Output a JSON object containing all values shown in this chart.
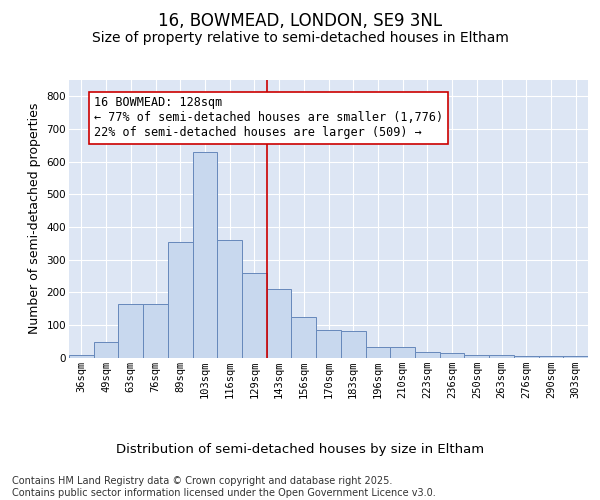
{
  "title": "16, BOWMEAD, LONDON, SE9 3NL",
  "subtitle": "Size of property relative to semi-detached houses in Eltham",
  "xlabel": "Distribution of semi-detached houses by size in Eltham",
  "ylabel": "Number of semi-detached properties",
  "footnote1": "Contains HM Land Registry data © Crown copyright and database right 2025.",
  "footnote2": "Contains public sector information licensed under the Open Government Licence v3.0.",
  "annotation_line1": "16 BOWMEAD: 128sqm",
  "annotation_line2": "← 77% of semi-detached houses are smaller (1,776)",
  "annotation_line3": "22% of semi-detached houses are larger (509) →",
  "bar_color": "#c8d8ee",
  "bar_edge_color": "#6688bb",
  "vline_color": "#cc0000",
  "background_color": "#dde6f4",
  "grid_color": "#ffffff",
  "categories": [
    "36sqm",
    "49sqm",
    "63sqm",
    "76sqm",
    "89sqm",
    "103sqm",
    "116sqm",
    "129sqm",
    "143sqm",
    "156sqm",
    "170sqm",
    "183sqm",
    "196sqm",
    "210sqm",
    "223sqm",
    "236sqm",
    "250sqm",
    "263sqm",
    "276sqm",
    "290sqm",
    "303sqm"
  ],
  "values": [
    8,
    47,
    165,
    165,
    355,
    630,
    360,
    260,
    210,
    123,
    83,
    80,
    33,
    33,
    18,
    14,
    9,
    7,
    5,
    5,
    5
  ],
  "vline_x": 7.5,
  "ylim": [
    0,
    850
  ],
  "yticks": [
    0,
    100,
    200,
    300,
    400,
    500,
    600,
    700,
    800
  ],
  "title_fontsize": 12,
  "subtitle_fontsize": 10,
  "xlabel_fontsize": 9.5,
  "ylabel_fontsize": 9,
  "tick_fontsize": 7.5,
  "annot_fontsize": 8.5,
  "footnote_fontsize": 7
}
